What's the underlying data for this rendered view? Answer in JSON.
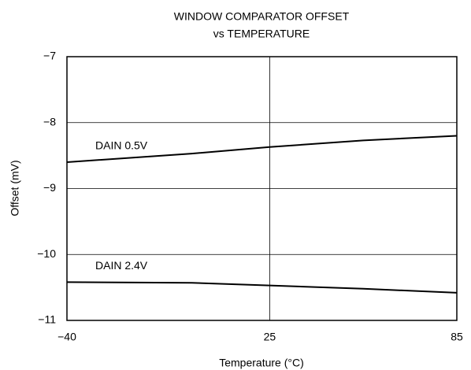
{
  "chart_data": {
    "type": "line",
    "title": "WINDOW COMPARATOR OFFSET",
    "subtitle": "vs TEMPERATURE",
    "x_label": "Temperature (°C)",
    "y_label": "Offset (mV)",
    "x": [
      -40,
      0,
      25,
      55,
      85
    ],
    "series": [
      {
        "name": "DAIN 0.5V",
        "color": "#000000",
        "values": [
          -8.6,
          -8.47,
          -8.37,
          -8.27,
          -8.2
        ]
      },
      {
        "name": "DAIN 2.4V",
        "color": "#000000",
        "values": [
          -10.42,
          -10.43,
          -10.47,
          -10.52,
          -10.58
        ]
      }
    ],
    "xlim": [
      -40,
      85
    ],
    "xticks": [
      {
        "value": -40,
        "label": "−40"
      },
      25,
      85
    ],
    "ylim": [
      -11,
      -7
    ],
    "yticks": [
      {
        "value": -11,
        "label": "−11"
      },
      {
        "value": -10,
        "label": "−10"
      },
      {
        "value": -9,
        "label": "−9"
      },
      {
        "value": -8,
        "label": "−8"
      },
      {
        "value": -7,
        "label": "−7"
      }
    ],
    "grid": true
  }
}
